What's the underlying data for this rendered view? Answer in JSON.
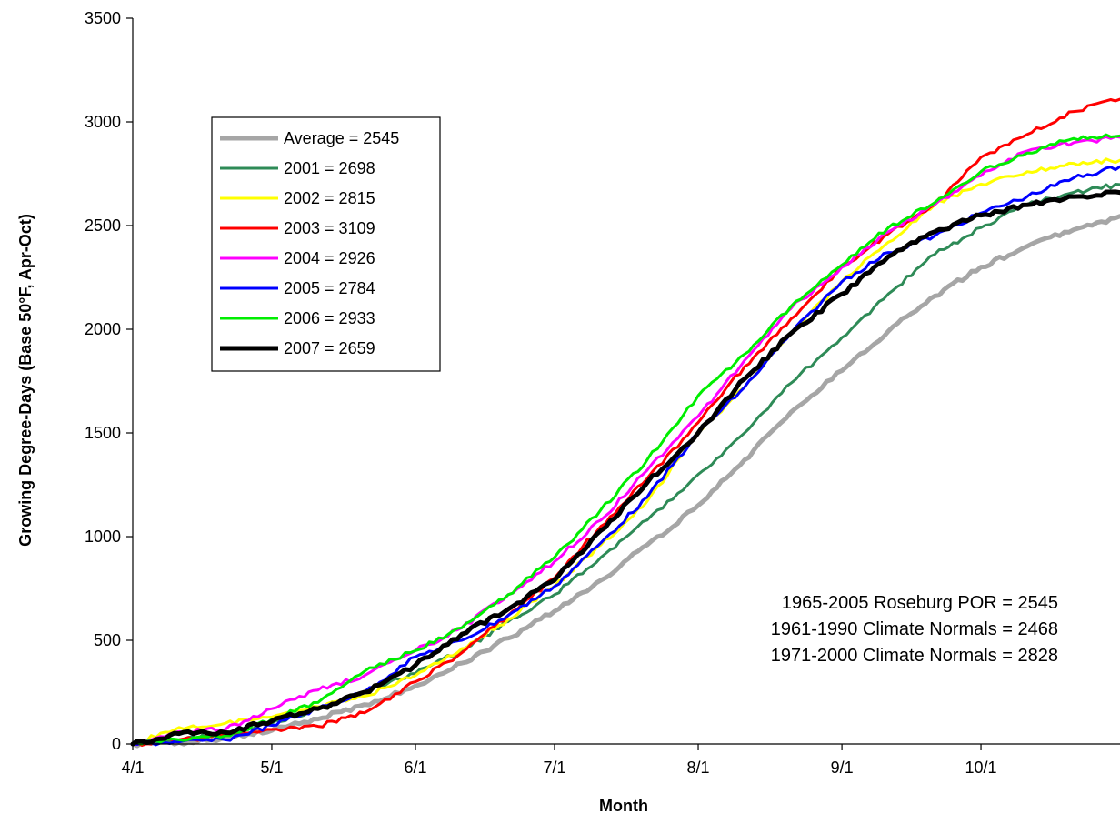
{
  "chart_data": {
    "type": "line",
    "xlabel": "Month",
    "ylabel": "Growing Degree-Days (Base 50°F, Apr-Oct)",
    "ylim": [
      0,
      3500
    ],
    "yticks": [
      0,
      500,
      1000,
      1500,
      2000,
      2500,
      3000,
      3500
    ],
    "xlim": [
      "2000-04-01",
      "2000-10-31"
    ],
    "xticks": [
      {
        "date": "2000-04-01",
        "label": "4/1"
      },
      {
        "date": "2000-05-01",
        "label": "5/1"
      },
      {
        "date": "2000-06-01",
        "label": "6/1"
      },
      {
        "date": "2000-07-01",
        "label": "7/1"
      },
      {
        "date": "2000-08-01",
        "label": "8/1"
      },
      {
        "date": "2000-09-01",
        "label": "9/1"
      },
      {
        "date": "2000-10-01",
        "label": "10/1"
      }
    ],
    "grid": false,
    "legend_position": "upper-left",
    "series": [
      {
        "name": "Average = 2545",
        "color": "#a6a6a6",
        "width": 5,
        "x": [
          "2000-04-01",
          "2000-04-11",
          "2000-04-21",
          "2000-05-01",
          "2000-05-11",
          "2000-05-21",
          "2000-06-01",
          "2000-06-11",
          "2000-06-21",
          "2000-07-01",
          "2000-07-11",
          "2000-07-21",
          "2000-08-01",
          "2000-08-11",
          "2000-08-21",
          "2000-09-01",
          "2000-09-11",
          "2000-09-21",
          "2000-10-01",
          "2000-10-11",
          "2000-10-21",
          "2000-10-31"
        ],
        "y": [
          0,
          8,
          30,
          65,
          120,
          190,
          280,
          390,
          510,
          640,
          790,
          960,
          1150,
          1370,
          1600,
          1800,
          1990,
          2160,
          2300,
          2400,
          2480,
          2545
        ]
      },
      {
        "name": "2001 = 2698",
        "color": "#2e8b57",
        "width": 3,
        "x": [
          "2000-04-01",
          "2000-04-11",
          "2000-04-21",
          "2000-05-01",
          "2000-05-11",
          "2000-05-21",
          "2000-06-01",
          "2000-06-11",
          "2000-06-21",
          "2000-07-01",
          "2000-07-11",
          "2000-07-21",
          "2000-08-01",
          "2000-08-11",
          "2000-08-21",
          "2000-09-01",
          "2000-09-11",
          "2000-09-21",
          "2000-10-01",
          "2000-10-11",
          "2000-10-21",
          "2000-10-31"
        ],
        "y": [
          0,
          20,
          45,
          100,
          170,
          250,
          340,
          450,
          590,
          720,
          900,
          1080,
          1300,
          1500,
          1740,
          1960,
          2170,
          2360,
          2490,
          2600,
          2660,
          2698
        ]
      },
      {
        "name": "2002 = 2815",
        "color": "#ffff00",
        "width": 3,
        "x": [
          "2000-04-01",
          "2000-04-11",
          "2000-04-21",
          "2000-05-01",
          "2000-05-11",
          "2000-05-21",
          "2000-06-01",
          "2000-06-11",
          "2000-06-21",
          "2000-07-01",
          "2000-07-11",
          "2000-07-21",
          "2000-08-01",
          "2000-08-11",
          "2000-08-21",
          "2000-09-01",
          "2000-09-11",
          "2000-09-21",
          "2000-10-01",
          "2000-10-11",
          "2000-10-21",
          "2000-10-31"
        ],
        "y": [
          0,
          80,
          100,
          130,
          180,
          230,
          330,
          460,
          600,
          760,
          960,
          1170,
          1500,
          1720,
          1980,
          2230,
          2420,
          2600,
          2700,
          2760,
          2800,
          2815
        ]
      },
      {
        "name": "2003 = 3109",
        "color": "#ff0000",
        "width": 3,
        "x": [
          "2000-04-01",
          "2000-04-11",
          "2000-04-21",
          "2000-05-01",
          "2000-05-11",
          "2000-05-21",
          "2000-06-01",
          "2000-06-11",
          "2000-06-21",
          "2000-07-01",
          "2000-07-11",
          "2000-07-21",
          "2000-08-01",
          "2000-08-11",
          "2000-08-21",
          "2000-09-01",
          "2000-09-11",
          "2000-09-21",
          "2000-10-01",
          "2000-10-11",
          "2000-10-21",
          "2000-10-31"
        ],
        "y": [
          0,
          20,
          40,
          70,
          85,
          150,
          300,
          440,
          620,
          800,
          1050,
          1280,
          1550,
          1820,
          2050,
          2300,
          2460,
          2600,
          2830,
          2940,
          3050,
          3109
        ]
      },
      {
        "name": "2004 = 2926",
        "color": "#ff00ff",
        "width": 3,
        "x": [
          "2000-04-01",
          "2000-04-11",
          "2000-04-21",
          "2000-05-01",
          "2000-05-11",
          "2000-05-21",
          "2000-06-01",
          "2000-06-11",
          "2000-06-21",
          "2000-07-01",
          "2000-07-11",
          "2000-07-21",
          "2000-08-01",
          "2000-08-11",
          "2000-08-21",
          "2000-09-01",
          "2000-09-11",
          "2000-09-21",
          "2000-10-01",
          "2000-10-11",
          "2000-10-21",
          "2000-10-31"
        ],
        "y": [
          0,
          60,
          70,
          170,
          260,
          330,
          450,
          560,
          720,
          880,
          1080,
          1320,
          1580,
          1850,
          2100,
          2300,
          2470,
          2600,
          2740,
          2860,
          2900,
          2926
        ]
      },
      {
        "name": "2005 = 2784",
        "color": "#0000ff",
        "width": 3,
        "x": [
          "2000-04-01",
          "2000-04-11",
          "2000-04-21",
          "2000-05-01",
          "2000-05-11",
          "2000-05-21",
          "2000-06-01",
          "2000-06-11",
          "2000-06-21",
          "2000-07-01",
          "2000-07-11",
          "2000-07-21",
          "2000-08-01",
          "2000-08-11",
          "2000-08-21",
          "2000-09-01",
          "2000-09-11",
          "2000-09-21",
          "2000-10-01",
          "2000-10-11",
          "2000-10-21",
          "2000-10-31"
        ],
        "y": [
          0,
          10,
          20,
          90,
          170,
          250,
          420,
          500,
          620,
          760,
          970,
          1190,
          1500,
          1720,
          1980,
          2230,
          2370,
          2450,
          2560,
          2640,
          2730,
          2784
        ]
      },
      {
        "name": "2006 = 2933",
        "color": "#00ee00",
        "width": 3,
        "x": [
          "2000-04-01",
          "2000-04-11",
          "2000-04-21",
          "2000-05-01",
          "2000-05-11",
          "2000-05-21",
          "2000-06-01",
          "2000-06-11",
          "2000-06-21",
          "2000-07-01",
          "2000-07-11",
          "2000-07-21",
          "2000-08-01",
          "2000-08-11",
          "2000-08-21",
          "2000-09-01",
          "2000-09-11",
          "2000-09-21",
          "2000-10-01",
          "2000-10-11",
          "2000-10-21",
          "2000-10-31"
        ],
        "y": [
          0,
          20,
          40,
          120,
          200,
          350,
          450,
          560,
          720,
          900,
          1130,
          1370,
          1680,
          1880,
          2110,
          2310,
          2490,
          2610,
          2760,
          2850,
          2920,
          2933
        ]
      },
      {
        "name": "2007 = 2659",
        "color": "#000000",
        "width": 5,
        "x": [
          "2000-04-01",
          "2000-04-11",
          "2000-04-21",
          "2000-05-01",
          "2000-05-11",
          "2000-05-21",
          "2000-06-01",
          "2000-06-11",
          "2000-06-21",
          "2000-07-01",
          "2000-07-11",
          "2000-07-21",
          "2000-08-01",
          "2000-08-11",
          "2000-08-21",
          "2000-09-01",
          "2000-09-11",
          "2000-09-21",
          "2000-10-01",
          "2000-10-11",
          "2000-10-21",
          "2000-10-31"
        ],
        "y": [
          0,
          50,
          55,
          110,
          170,
          250,
          380,
          530,
          650,
          790,
          1030,
          1260,
          1500,
          1760,
          1980,
          2170,
          2350,
          2470,
          2550,
          2600,
          2640,
          2659
        ]
      }
    ],
    "annotations": [
      "1965-2005 Roseburg POR = 2545",
      "1961-1990 Climate Normals = 2468",
      "1971-2000 Climate Normals = 2828"
    ]
  }
}
